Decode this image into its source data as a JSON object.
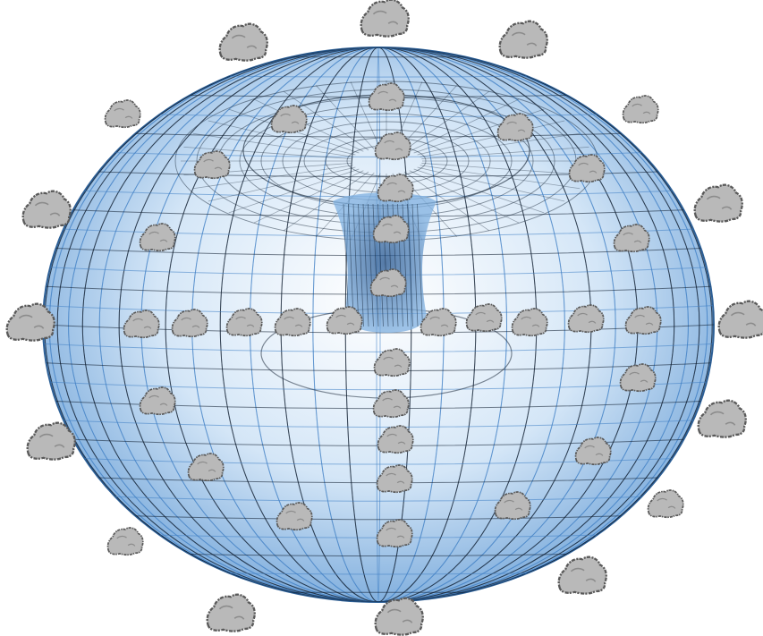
{
  "figure": {
    "shape": "torus",
    "surface": "wireframe mesh",
    "object_icon": "rock-icon",
    "rock_count": 50
  },
  "colors": {
    "background": "#ffffff",
    "torus_fill": "#a9cdef",
    "torus_fill_edge": "#5a93cf",
    "mesh_blue": "#3f7fc4",
    "mesh_dark": "#0b1a2c",
    "rock_fill": "#b9b9b9",
    "rock_outline": "#555555"
  }
}
